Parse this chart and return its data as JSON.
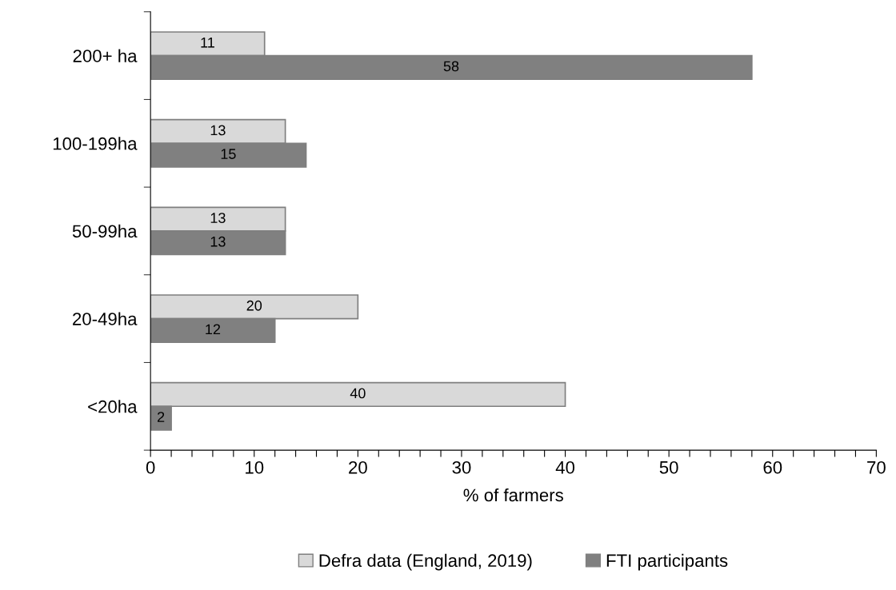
{
  "chart_data": {
    "type": "bar",
    "orientation": "horizontal",
    "categories": [
      "200+ ha",
      "100-199ha",
      "50-99ha",
      "20-49ha",
      "<20ha"
    ],
    "series": [
      {
        "name": "Defra data (England, 2019)",
        "color": "#d9d9d9",
        "values": [
          11,
          13,
          13,
          20,
          40
        ]
      },
      {
        "name": "FTI participants",
        "color": "#808080",
        "values": [
          58,
          15,
          13,
          12,
          2
        ]
      }
    ],
    "xlabel": "% of farmers",
    "xlim": [
      0,
      70
    ],
    "xticks": [
      0,
      {
        "value": 2,
        "label": null
      },
      {
        "value": 4,
        "label": null
      },
      {
        "value": 6,
        "label": null
      },
      {
        "value": 8,
        "label": null
      },
      10,
      {
        "value": 12,
        "label": null
      },
      {
        "value": 14,
        "label": null
      },
      {
        "value": 16,
        "label": null
      },
      {
        "value": 18,
        "label": null
      },
      20,
      {
        "value": 22,
        "label": null
      },
      {
        "value": 24,
        "label": null
      },
      {
        "value": 26,
        "label": null
      },
      {
        "value": 28,
        "label": null
      },
      30,
      {
        "value": 32,
        "label": null
      },
      {
        "value": 34,
        "label": null
      },
      {
        "value": 36,
        "label": null
      },
      {
        "value": 38,
        "label": null
      },
      40,
      {
        "value": 42,
        "label": null
      },
      {
        "value": 44,
        "label": null
      },
      {
        "value": 46,
        "label": null
      },
      {
        "value": 48,
        "label": null
      },
      50,
      {
        "value": 52,
        "label": null
      },
      {
        "value": 54,
        "label": null
      },
      {
        "value": 56,
        "label": null
      },
      {
        "value": 58,
        "label": null
      },
      60,
      {
        "value": 62,
        "label": null
      },
      {
        "value": 64,
        "label": null
      },
      {
        "value": 66,
        "label": null
      },
      {
        "value": 68,
        "label": null
      },
      70
    ],
    "data_labels": true,
    "grid": false,
    "legend": "bottom"
  }
}
